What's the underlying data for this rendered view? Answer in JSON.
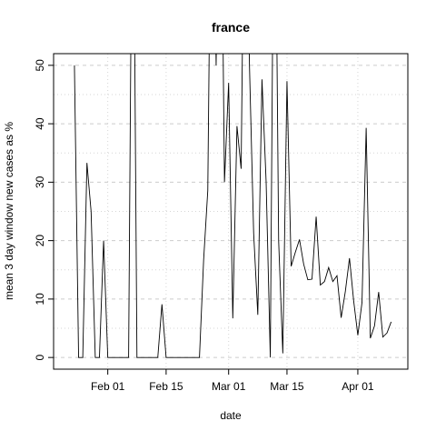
{
  "chart_data": {
    "type": "line",
    "title": "france",
    "xlabel": "date",
    "ylabel": "mean  3  day window new cases as %",
    "x_tick_labels": [
      "Feb 01",
      "Feb 15",
      "Mar 01",
      "Mar 15",
      "Apr 01"
    ],
    "x_tick_dates": [
      "2020-02-01",
      "2020-02-15",
      "2020-03-01",
      "2020-03-15",
      "2020-04-01"
    ],
    "y_ticks": [
      0,
      10,
      20,
      30,
      40,
      50
    ],
    "ylim": [
      -2,
      52
    ],
    "xlim": [
      "2020-01-19",
      "2020-04-13"
    ],
    "grid": true,
    "color": "#000000",
    "series": [
      {
        "x": [
          "2020-01-24",
          "2020-01-25",
          "2020-01-26",
          "2020-01-27",
          "2020-01-28",
          "2020-01-29",
          "2020-01-30",
          "2020-01-31",
          "2020-02-01",
          "2020-02-02",
          "2020-02-03",
          "2020-02-04",
          "2020-02-05",
          "2020-02-06",
          "2020-02-07",
          "2020-02-08",
          "2020-02-09",
          "2020-02-10",
          "2020-02-11",
          "2020-02-12",
          "2020-02-13",
          "2020-02-14",
          "2020-02-15",
          "2020-02-16",
          "2020-02-17",
          "2020-02-18",
          "2020-02-19",
          "2020-02-20",
          "2020-02-21",
          "2020-02-22",
          "2020-02-23",
          "2020-02-24",
          "2020-02-25",
          "2020-02-26",
          "2020-02-27",
          "2020-02-28",
          "2020-02-29",
          "2020-03-01",
          "2020-03-02",
          "2020-03-03",
          "2020-03-04",
          "2020-03-05",
          "2020-03-06",
          "2020-03-07",
          "2020-03-08",
          "2020-03-09",
          "2020-03-10",
          "2020-03-11",
          "2020-03-12",
          "2020-03-13",
          "2020-03-14",
          "2020-03-15",
          "2020-03-16",
          "2020-03-17",
          "2020-03-18",
          "2020-03-19",
          "2020-03-20",
          "2020-03-21",
          "2020-03-22",
          "2020-03-23",
          "2020-03-24",
          "2020-03-25",
          "2020-03-26",
          "2020-03-27",
          "2020-03-28",
          "2020-03-29",
          "2020-03-30",
          "2020-03-31",
          "2020-04-01",
          "2020-04-02",
          "2020-04-03",
          "2020-04-04",
          "2020-04-05",
          "2020-04-06",
          "2020-04-07",
          "2020-04-08",
          "2020-04-09"
        ],
        "values": [
          50,
          0,
          0,
          33.3,
          25,
          0,
          0,
          20,
          0,
          0,
          0,
          0,
          0,
          0,
          100,
          0,
          0,
          0,
          0,
          0,
          0,
          9.1,
          0,
          0,
          0,
          0,
          0,
          0,
          0,
          0,
          0,
          16.7,
          28.6,
          100,
          50,
          100,
          30,
          47,
          6.7,
          39.6,
          32.3,
          100,
          50,
          21.3,
          7.3,
          47.6,
          30,
          0,
          100,
          20,
          0.7,
          47.3,
          15.6,
          18,
          20.2,
          16,
          13.3,
          13.4,
          24.1,
          12.4,
          13,
          15.4,
          13,
          14,
          6.8,
          11.3,
          17,
          9.7,
          3.8,
          9.4,
          39.3,
          3.3,
          5.4,
          11.2,
          3.5,
          4.2,
          6.1
        ]
      }
    ]
  }
}
